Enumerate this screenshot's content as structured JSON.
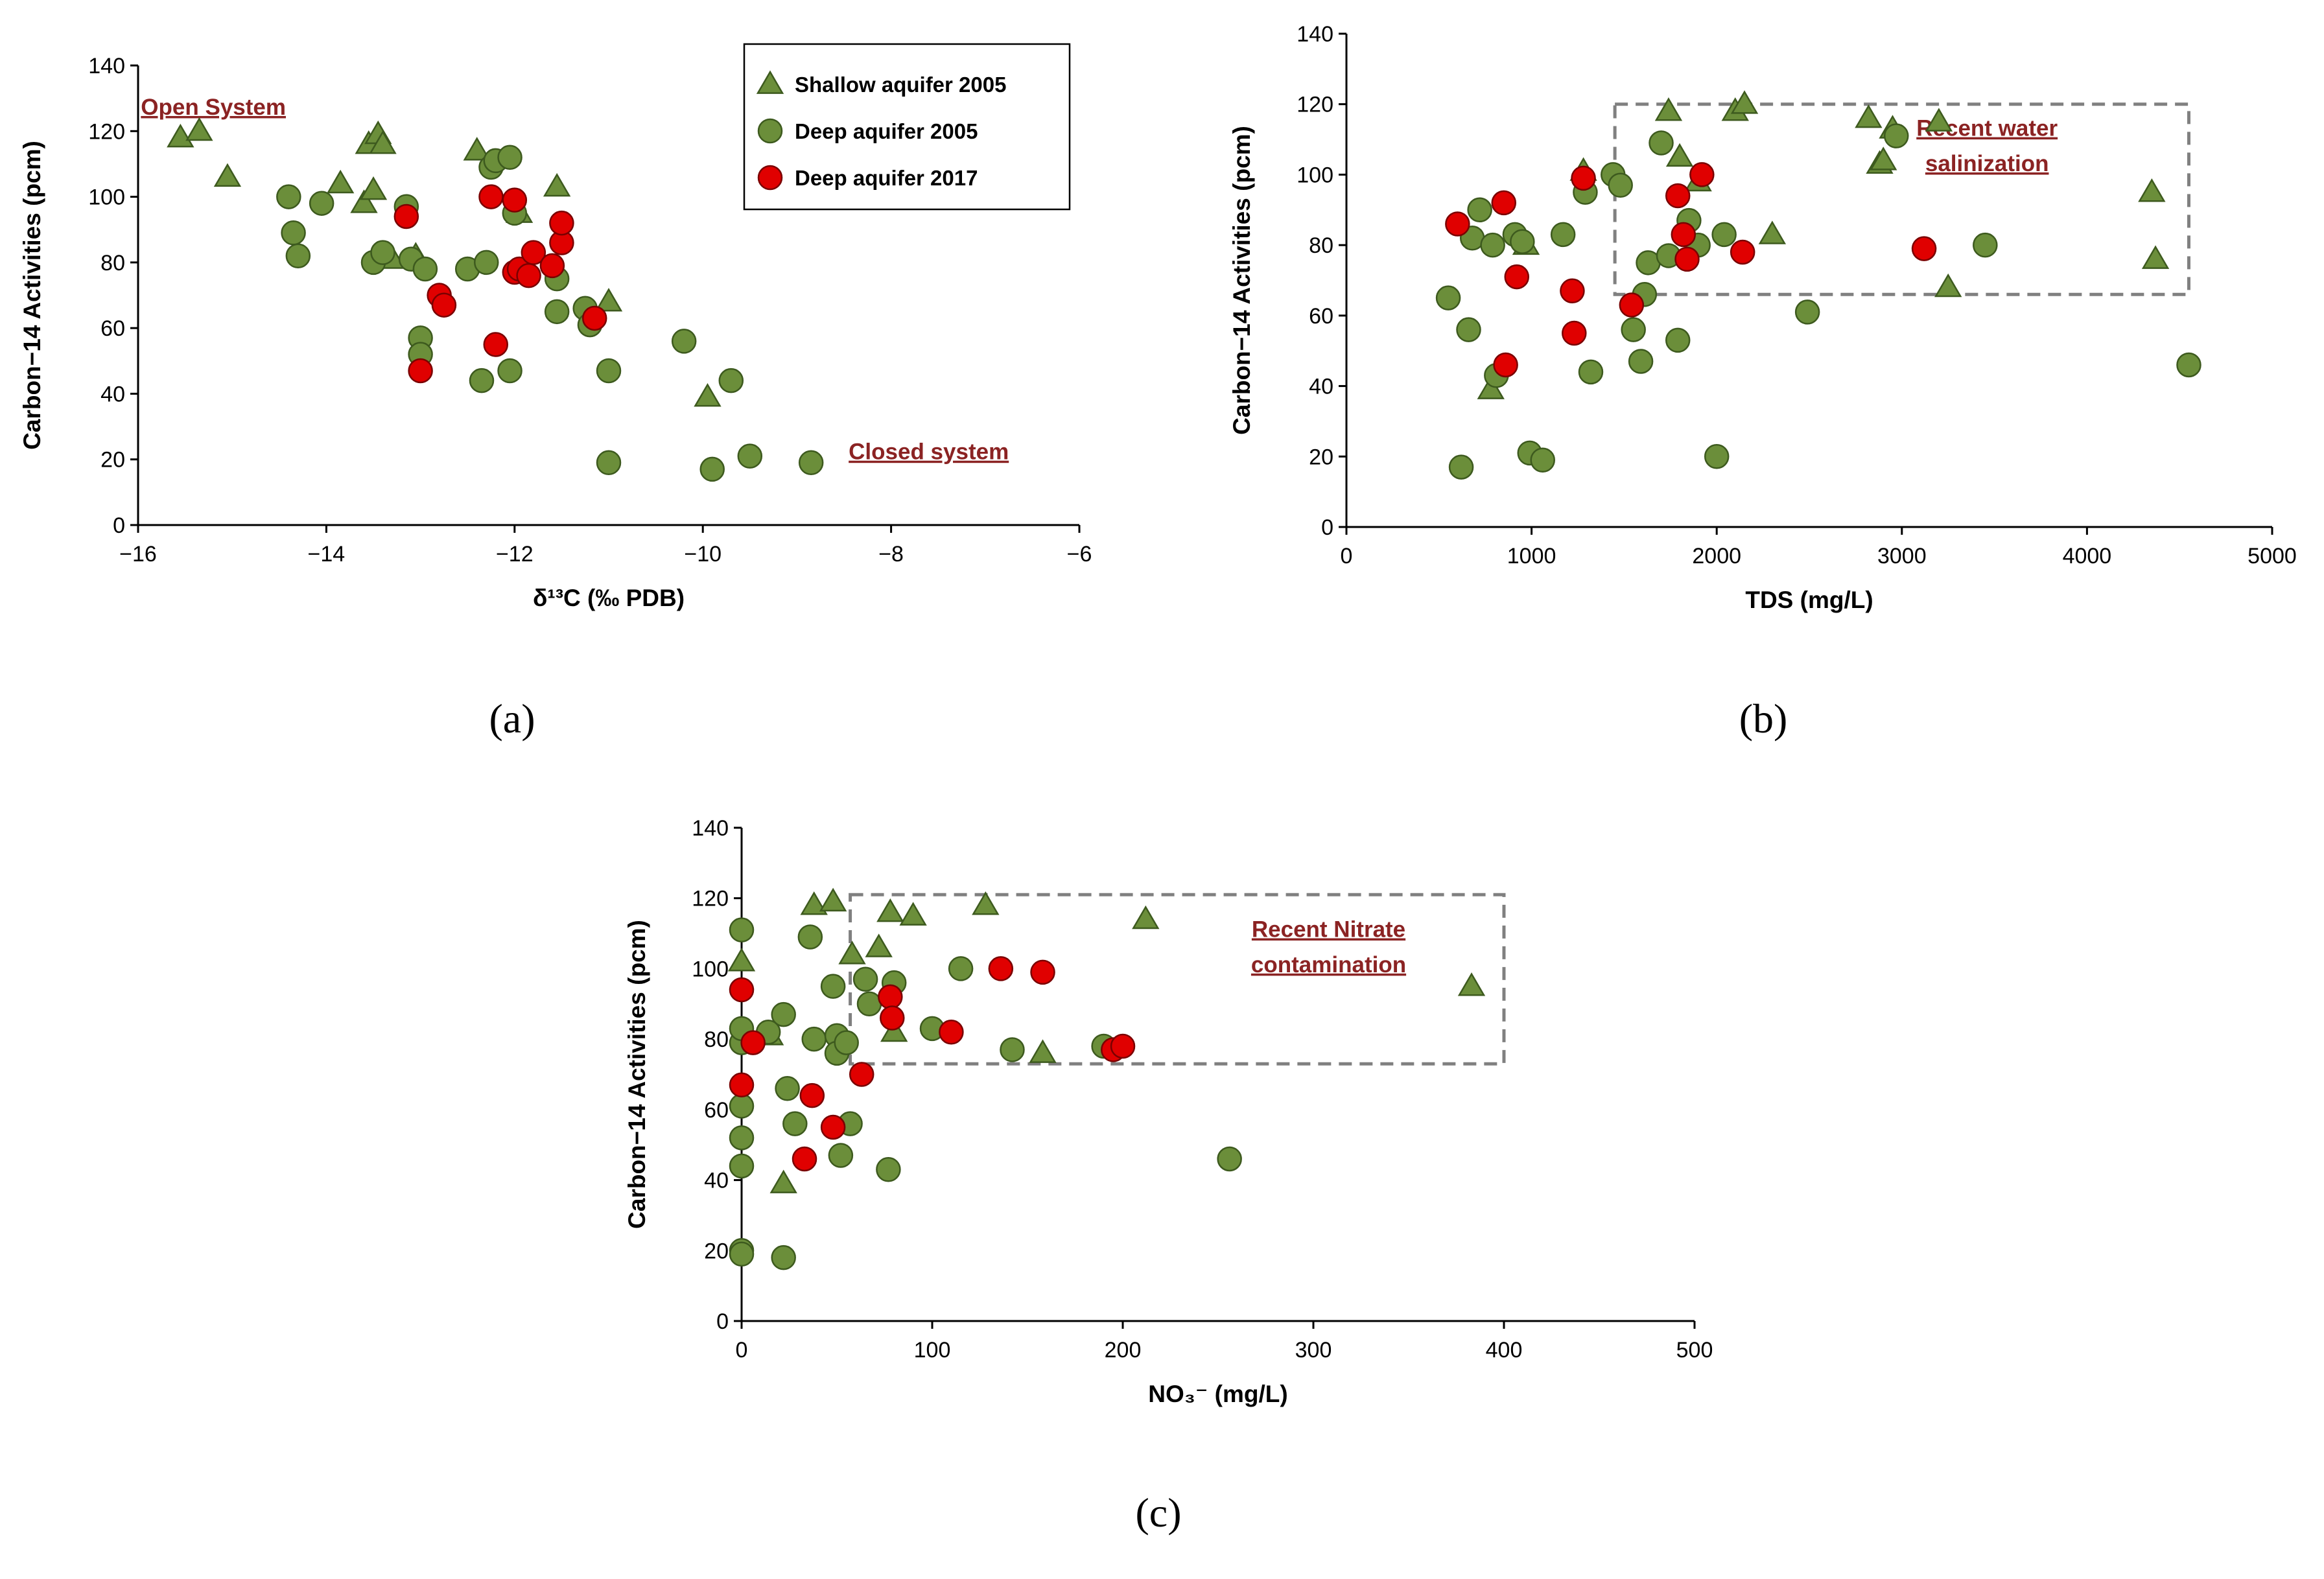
{
  "chart_data": [
    {
      "type": "scatter",
      "panel_label": "(a)",
      "xlabel": "δ¹³C (‰ PDB)",
      "ylabel": "Carbon−14 Activities (pcm)",
      "xlim": [
        -16,
        -6
      ],
      "ylim": [
        0,
        140
      ],
      "xticks": [
        -16,
        -14,
        -12,
        -10,
        -8,
        -6
      ],
      "xtick_labels": [
        "−16",
        "−14",
        "−12",
        "−10",
        "−8",
        "−6"
      ],
      "yticks": [
        0,
        20,
        40,
        60,
        80,
        100,
        120,
        140
      ],
      "annotations": [
        {
          "text": "Open System",
          "x": -15.2,
          "y": 125
        },
        {
          "text": "Closed system",
          "x": -7.6,
          "y": 20
        }
      ],
      "legend": {
        "position": "top-right",
        "entries": [
          {
            "name": "Shallow aquifer 2005",
            "marker": "triangle"
          },
          {
            "name": "Deep aquifer 2005",
            "marker": "circle"
          },
          {
            "name": "Deep aquifer 2017",
            "marker": "circle-red"
          }
        ]
      },
      "series": [
        {
          "name": "Shallow aquifer 2005",
          "marker": "triangle",
          "color": "#6b8e3a",
          "x": [
            -15.55,
            -15.35,
            -15.05,
            -13.85,
            -13.6,
            -13.55,
            -13.5,
            -13.45,
            -13.4,
            -13.3,
            -13.05,
            -12.4,
            -11.95,
            -11.55,
            -11.0,
            -9.95
          ],
          "y": [
            118,
            120,
            106,
            104,
            98,
            116,
            102,
            119,
            116,
            81,
            82,
            114,
            95,
            103,
            68,
            39
          ]
        },
        {
          "name": "Deep aquifer 2005",
          "marker": "circle",
          "color": "#6b8e3a",
          "x": [
            -14.4,
            -14.35,
            -14.3,
            -14.05,
            -13.5,
            -13.4,
            -13.15,
            -13.1,
            -13.0,
            -13.0,
            -12.95,
            -12.5,
            -12.35,
            -12.3,
            -12.25,
            -12.2,
            -12.05,
            -12.05,
            -12.0,
            -11.55,
            -11.55,
            -11.25,
            -11.2,
            -11.0,
            -11.0,
            -10.2,
            -9.9,
            -9.7,
            -9.5,
            -8.85
          ],
          "y": [
            100,
            89,
            82,
            98,
            80,
            83,
            97,
            81,
            57,
            52,
            78,
            78,
            44,
            80,
            109,
            111,
            47,
            112,
            95,
            75,
            65,
            66,
            61,
            47,
            19,
            56,
            17,
            44,
            21,
            19
          ]
        },
        {
          "name": "Deep aquifer 2017",
          "marker": "circle-red",
          "color": "#e00000",
          "x": [
            -13.15,
            -13.0,
            -12.8,
            -12.75,
            -12.25,
            -12.2,
            -12.0,
            -12.0,
            -11.95,
            -11.85,
            -11.8,
            -11.6,
            -11.5,
            -11.5,
            -11.15
          ],
          "y": [
            94,
            47,
            70,
            67,
            100,
            55,
            99,
            77,
            78,
            76,
            83,
            79,
            86,
            92,
            63
          ]
        }
      ]
    },
    {
      "type": "scatter",
      "panel_label": "(b)",
      "xlabel": "TDS (mg/L)",
      "ylabel": "Carbon−14 Activities (pcm)",
      "xlim": [
        0,
        5000
      ],
      "ylim": [
        0,
        140
      ],
      "xticks": [
        0,
        1000,
        2000,
        3000,
        4000,
        5000
      ],
      "xtick_labels": [
        "0",
        "1000",
        "2000",
        "3000",
        "4000",
        "5000"
      ],
      "yticks": [
        0,
        20,
        40,
        60,
        80,
        100,
        120,
        140
      ],
      "annotations": [
        {
          "text": "Recent water",
          "x": 3460,
          "y": 111
        },
        {
          "text": "salinization",
          "x": 3460,
          "y": 101
        }
      ],
      "region": {
        "x0": 1450,
        "x1": 4550,
        "y0": 66,
        "y1": 120
      },
      "series": [
        {
          "name": "Shallow aquifer 2005",
          "marker": "triangle",
          "color": "#6b8e3a",
          "x": [
            780,
            970,
            1280,
            1740,
            1800,
            1900,
            2100,
            2150,
            2300,
            2820,
            2880,
            2900,
            2950,
            3200,
            3250,
            4350,
            4370
          ],
          "y": [
            39,
            80,
            101,
            118,
            105,
            98,
            118,
            120,
            83,
            116,
            103,
            104,
            113,
            115,
            68,
            95,
            76
          ]
        },
        {
          "name": "Deep aquifer 2005",
          "marker": "circle",
          "color": "#6b8e3a",
          "x": [
            550,
            620,
            660,
            680,
            720,
            790,
            810,
            910,
            950,
            990,
            1060,
            1170,
            1290,
            1320,
            1440,
            1480,
            1550,
            1590,
            1610,
            1630,
            1700,
            1740,
            1790,
            1850,
            1900,
            2000,
            2040,
            2490,
            2970,
            3450,
            4550
          ],
          "y": [
            65,
            17,
            56,
            82,
            90,
            80,
            43,
            83,
            81,
            21,
            19,
            83,
            95,
            44,
            100,
            97,
            56,
            47,
            66,
            75,
            109,
            77,
            53,
            87,
            80,
            20,
            83,
            61,
            111,
            80,
            46
          ]
        },
        {
          "name": "Deep aquifer 2017",
          "marker": "circle-red",
          "color": "#e00000",
          "x": [
            600,
            850,
            860,
            920,
            1220,
            1230,
            1280,
            1540,
            1790,
            1820,
            1840,
            1920,
            2140,
            3120
          ],
          "y": [
            86,
            92,
            46,
            71,
            67,
            55,
            99,
            63,
            94,
            83,
            76,
            100,
            78,
            79
          ]
        }
      ]
    },
    {
      "type": "scatter",
      "panel_label": "(c)",
      "xlabel": "NO₃⁻ (mg/L)",
      "ylabel": "Carbon−14 Activities (pcm)",
      "xlim": [
        0,
        500
      ],
      "ylim": [
        0,
        140
      ],
      "xticks": [
        0,
        100,
        200,
        300,
        400,
        500
      ],
      "xtick_labels": [
        "0",
        "100",
        "200",
        "300",
        "400",
        "500"
      ],
      "yticks": [
        0,
        20,
        40,
        60,
        80,
        100,
        120,
        140
      ],
      "annotations": [
        {
          "text": "Recent Nitrate",
          "x": 308,
          "y": 109
        },
        {
          "text": "contamination",
          "x": 308,
          "y": 99
        }
      ],
      "region": {
        "x0": 57,
        "x1": 400,
        "y0": 73,
        "y1": 121
      },
      "series": [
        {
          "name": "Shallow aquifer 2005",
          "marker": "triangle",
          "color": "#6b8e3a",
          "x": [
            0,
            15,
            22,
            38,
            48,
            58,
            72,
            78,
            80,
            90,
            128,
            158,
            212,
            383
          ],
          "y": [
            102,
            81,
            39,
            118,
            119,
            104,
            106,
            116,
            82,
            115,
            118,
            76,
            114,
            95
          ]
        },
        {
          "name": "Deep aquifer 2005",
          "marker": "circle",
          "color": "#6b8e3a",
          "x": [
            0,
            0,
            0,
            0,
            0,
            0,
            0,
            0,
            14,
            22,
            22,
            24,
            28,
            36,
            38,
            48,
            50,
            50,
            52,
            55,
            57,
            65,
            67,
            77,
            80,
            100,
            115,
            142,
            190,
            256
          ],
          "y": [
            111,
            79,
            83,
            61,
            52,
            44,
            20,
            19,
            82,
            87,
            18,
            66,
            56,
            109,
            80,
            95,
            81,
            76,
            47,
            79,
            56,
            97,
            90,
            43,
            96,
            83,
            100,
            77,
            78,
            46
          ]
        },
        {
          "name": "Deep aquifer 2017",
          "marker": "circle-red",
          "color": "#e00000",
          "x": [
            0,
            0,
            6,
            33,
            37,
            48,
            63,
            78,
            79,
            110,
            136,
            158,
            195,
            200
          ],
          "y": [
            94,
            67,
            79,
            46,
            64,
            55,
            70,
            92,
            86,
            82,
            100,
            99,
            77,
            78
          ]
        }
      ]
    }
  ]
}
